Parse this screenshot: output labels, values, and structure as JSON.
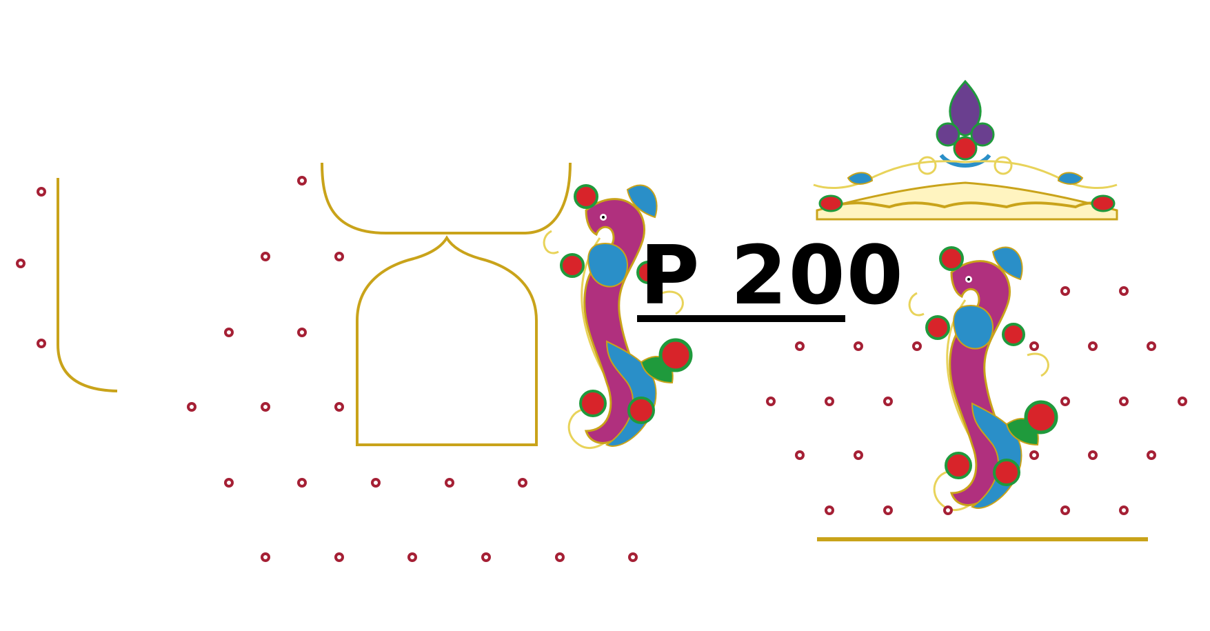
{
  "design": {
    "code": "P 200"
  },
  "colors": {
    "gold": "#c9a31a",
    "gold_light": "#e8d35a",
    "maroon": "#a52035",
    "magenta": "#b0307e",
    "blue": "#2a8fc8",
    "green": "#1f9a3c",
    "red": "#d8242a",
    "purple": "#6a3f8f",
    "watermark": "#c9c9c9"
  },
  "icons": {
    "bead_motif": "bead-dot-icon",
    "peacock_motif": "peacock-icon",
    "crown_motif": "crown-motif-icon"
  }
}
